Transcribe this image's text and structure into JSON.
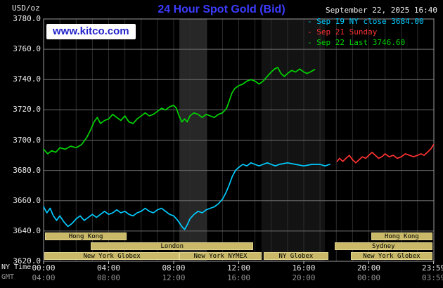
{
  "header": {
    "unit_label": "USD/oz",
    "title": "24 Hour Spot Gold (Bid)",
    "datetime": "September 22, 2025 16:40",
    "watermark": "www.kitco.com",
    "colors": {
      "title": "#3c3cff",
      "watermark": "#2323cc"
    }
  },
  "legend": {
    "items": [
      {
        "key": "sep19",
        "marker": "-",
        "text": "Sep 19 NY close 3684.00",
        "color": "#00ccff"
      },
      {
        "key": "sep21",
        "marker": "-",
        "text": "Sep 21 Sunday",
        "color": "#ff3232"
      },
      {
        "key": "sep22",
        "marker": "-",
        "text": "Sep 22 Last 3746.60",
        "color": "#00d400"
      }
    ]
  },
  "axes": {
    "y_ticks": [
      "3780.0",
      "3760.0",
      "3740.0",
      "3720.0",
      "3700.0",
      "3680.0",
      "3660.0",
      "3640.0",
      "3620.0"
    ],
    "x_tick_hours": [
      0,
      4,
      8,
      12,
      16,
      20,
      23.983
    ],
    "x_rows": [
      {
        "label": "NY Time",
        "color": "#e6e6e6",
        "ticks": [
          "00:00",
          "04:00",
          "08:00",
          "12:00",
          "16:00",
          "20:00",
          "23:59"
        ]
      },
      {
        "label": "GMT",
        "color": "#909090",
        "ticks": [
          "04:00",
          "08:00",
          "12:00",
          "16:00",
          "20:00",
          "00:00",
          "03:59"
        ]
      }
    ]
  },
  "sessions": {
    "style": {
      "fill": "#c9b968",
      "border": "#e3d68f",
      "text": "#000000"
    },
    "rows": [
      [
        {
          "label": "Hong Kong",
          "start": 0.1,
          "end": 5.1
        },
        {
          "label": "Hong Kong",
          "start": 20.15,
          "end": 23.9
        }
      ],
      [
        {
          "label": "London",
          "start": 2.9,
          "end": 12.9
        },
        {
          "label": "Sydney",
          "start": 17.9,
          "end": 23.9
        }
      ],
      [
        {
          "label": "New York Globex",
          "start": 0.05,
          "end": 8.35
        },
        {
          "label": "New York NYMEX",
          "start": 8.35,
          "end": 13.4
        },
        {
          "label": "NY Globex",
          "start": 13.55,
          "end": 17.5
        },
        {
          "label": "New York Globex",
          "start": 18.9,
          "end": 23.9
        }
      ]
    ]
  },
  "chart_data": {
    "type": "line",
    "title": "24 Hour Spot Gold (Bid)",
    "xlabel": "NY Time (hours)",
    "ylabel": "USD/oz",
    "xlim": [
      0,
      24
    ],
    "ylim": [
      3620,
      3780
    ],
    "y_tick_step": 20,
    "grid": true,
    "legend_position": "top-right",
    "style": {
      "background": "#000000",
      "grid_v": "#2d2d2d",
      "grid_h": "#6e6e6e",
      "frame": "#9a9a9a"
    },
    "bands": [
      {
        "x0": 8.35,
        "x1": 10.05,
        "color": "#272727"
      },
      {
        "x0": 13.4,
        "x1": 17.3,
        "color": "#131313"
      }
    ],
    "series": [
      {
        "key": "sep19",
        "name": "Sep 19 NY close 3684.00",
        "color": "#00ccff",
        "points": [
          [
            0,
            3656
          ],
          [
            0.2,
            3652
          ],
          [
            0.4,
            3655
          ],
          [
            0.6,
            3650
          ],
          [
            0.8,
            3647
          ],
          [
            1,
            3650
          ],
          [
            1.25,
            3646
          ],
          [
            1.5,
            3643
          ],
          [
            1.75,
            3645
          ],
          [
            2,
            3648
          ],
          [
            2.25,
            3650
          ],
          [
            2.5,
            3647
          ],
          [
            2.75,
            3649
          ],
          [
            3,
            3651
          ],
          [
            3.25,
            3649
          ],
          [
            3.5,
            3651
          ],
          [
            3.75,
            3653
          ],
          [
            4,
            3651
          ],
          [
            4.25,
            3652
          ],
          [
            4.5,
            3654
          ],
          [
            4.75,
            3652
          ],
          [
            5,
            3653
          ],
          [
            5.25,
            3651
          ],
          [
            5.5,
            3650
          ],
          [
            5.75,
            3652
          ],
          [
            6,
            3653
          ],
          [
            6.25,
            3655
          ],
          [
            6.5,
            3653
          ],
          [
            6.75,
            3652
          ],
          [
            7,
            3654
          ],
          [
            7.25,
            3655
          ],
          [
            7.5,
            3653
          ],
          [
            7.75,
            3651
          ],
          [
            8,
            3650
          ],
          [
            8.25,
            3647
          ],
          [
            8.5,
            3643
          ],
          [
            8.67,
            3641
          ],
          [
            8.83,
            3644
          ],
          [
            9,
            3648
          ],
          [
            9.25,
            3651
          ],
          [
            9.5,
            3653
          ],
          [
            9.75,
            3652
          ],
          [
            10,
            3654
          ],
          [
            10.25,
            3655
          ],
          [
            10.5,
            3656
          ],
          [
            10.75,
            3658
          ],
          [
            11,
            3661
          ],
          [
            11.2,
            3665
          ],
          [
            11.4,
            3670
          ],
          [
            11.6,
            3676
          ],
          [
            11.8,
            3680
          ],
          [
            12,
            3682
          ],
          [
            12.25,
            3684
          ],
          [
            12.5,
            3683
          ],
          [
            12.75,
            3685
          ],
          [
            13,
            3684
          ],
          [
            13.25,
            3683
          ],
          [
            13.5,
            3684
          ],
          [
            13.75,
            3685
          ],
          [
            14,
            3684
          ],
          [
            14.25,
            3683
          ],
          [
            14.5,
            3684
          ],
          [
            15,
            3685
          ],
          [
            15.5,
            3684
          ],
          [
            16,
            3683
          ],
          [
            16.5,
            3684
          ],
          [
            17,
            3684
          ],
          [
            17.3,
            3683
          ],
          [
            17.6,
            3684
          ]
        ]
      },
      {
        "key": "sep21",
        "name": "Sep 21 Sunday",
        "color": "#ff3232",
        "points": [
          [
            18.05,
            3686
          ],
          [
            18.2,
            3688
          ],
          [
            18.4,
            3686
          ],
          [
            18.6,
            3688
          ],
          [
            18.8,
            3690
          ],
          [
            19,
            3687
          ],
          [
            19.2,
            3685
          ],
          [
            19.4,
            3687
          ],
          [
            19.6,
            3689
          ],
          [
            19.8,
            3688
          ],
          [
            20,
            3690
          ],
          [
            20.2,
            3692
          ],
          [
            20.4,
            3690
          ],
          [
            20.6,
            3688
          ],
          [
            20.8,
            3689
          ],
          [
            21,
            3691
          ],
          [
            21.25,
            3689
          ],
          [
            21.5,
            3690
          ],
          [
            21.75,
            3688
          ],
          [
            22,
            3689
          ],
          [
            22.25,
            3691
          ],
          [
            22.5,
            3690
          ],
          [
            22.75,
            3689
          ],
          [
            23,
            3690
          ],
          [
            23.2,
            3691
          ],
          [
            23.4,
            3690
          ],
          [
            23.6,
            3692
          ],
          [
            23.8,
            3694
          ],
          [
            23.98,
            3697
          ]
        ]
      },
      {
        "key": "sep22",
        "name": "Sep 22 Last 3746.60",
        "color": "#00d400",
        "points": [
          [
            0,
            3694
          ],
          [
            0.25,
            3691
          ],
          [
            0.5,
            3693
          ],
          [
            0.75,
            3692
          ],
          [
            1,
            3695
          ],
          [
            1.33,
            3694
          ],
          [
            1.67,
            3696
          ],
          [
            2,
            3695
          ],
          [
            2.33,
            3697
          ],
          [
            2.67,
            3702
          ],
          [
            2.9,
            3707
          ],
          [
            3.1,
            3712
          ],
          [
            3.3,
            3715
          ],
          [
            3.5,
            3711
          ],
          [
            3.75,
            3713
          ],
          [
            4,
            3714
          ],
          [
            4.25,
            3717
          ],
          [
            4.5,
            3715
          ],
          [
            4.75,
            3713
          ],
          [
            5,
            3716
          ],
          [
            5.25,
            3712
          ],
          [
            5.5,
            3711
          ],
          [
            5.75,
            3714
          ],
          [
            6,
            3716
          ],
          [
            6.25,
            3718
          ],
          [
            6.5,
            3716
          ],
          [
            6.75,
            3717
          ],
          [
            7,
            3719
          ],
          [
            7.25,
            3721
          ],
          [
            7.5,
            3720
          ],
          [
            7.75,
            3722
          ],
          [
            8,
            3723
          ],
          [
            8.17,
            3721
          ],
          [
            8.33,
            3716
          ],
          [
            8.5,
            3712
          ],
          [
            8.67,
            3714
          ],
          [
            8.83,
            3712
          ],
          [
            9,
            3716
          ],
          [
            9.25,
            3718
          ],
          [
            9.5,
            3717
          ],
          [
            9.75,
            3715
          ],
          [
            10,
            3717
          ],
          [
            10.25,
            3716
          ],
          [
            10.5,
            3715
          ],
          [
            10.75,
            3717
          ],
          [
            11,
            3718
          ],
          [
            11.25,
            3721
          ],
          [
            11.42,
            3726
          ],
          [
            11.58,
            3731
          ],
          [
            11.75,
            3734
          ],
          [
            12,
            3736
          ],
          [
            12.25,
            3737
          ],
          [
            12.5,
            3739
          ],
          [
            12.75,
            3740
          ],
          [
            13,
            3739
          ],
          [
            13.25,
            3737
          ],
          [
            13.5,
            3739
          ],
          [
            13.75,
            3742
          ],
          [
            14,
            3745
          ],
          [
            14.2,
            3747
          ],
          [
            14.4,
            3748
          ],
          [
            14.6,
            3744
          ],
          [
            14.8,
            3742
          ],
          [
            15,
            3744
          ],
          [
            15.25,
            3746
          ],
          [
            15.5,
            3745
          ],
          [
            15.75,
            3747
          ],
          [
            16,
            3745
          ],
          [
            16.2,
            3744
          ],
          [
            16.4,
            3745
          ],
          [
            16.67,
            3746.6
          ]
        ]
      }
    ]
  }
}
